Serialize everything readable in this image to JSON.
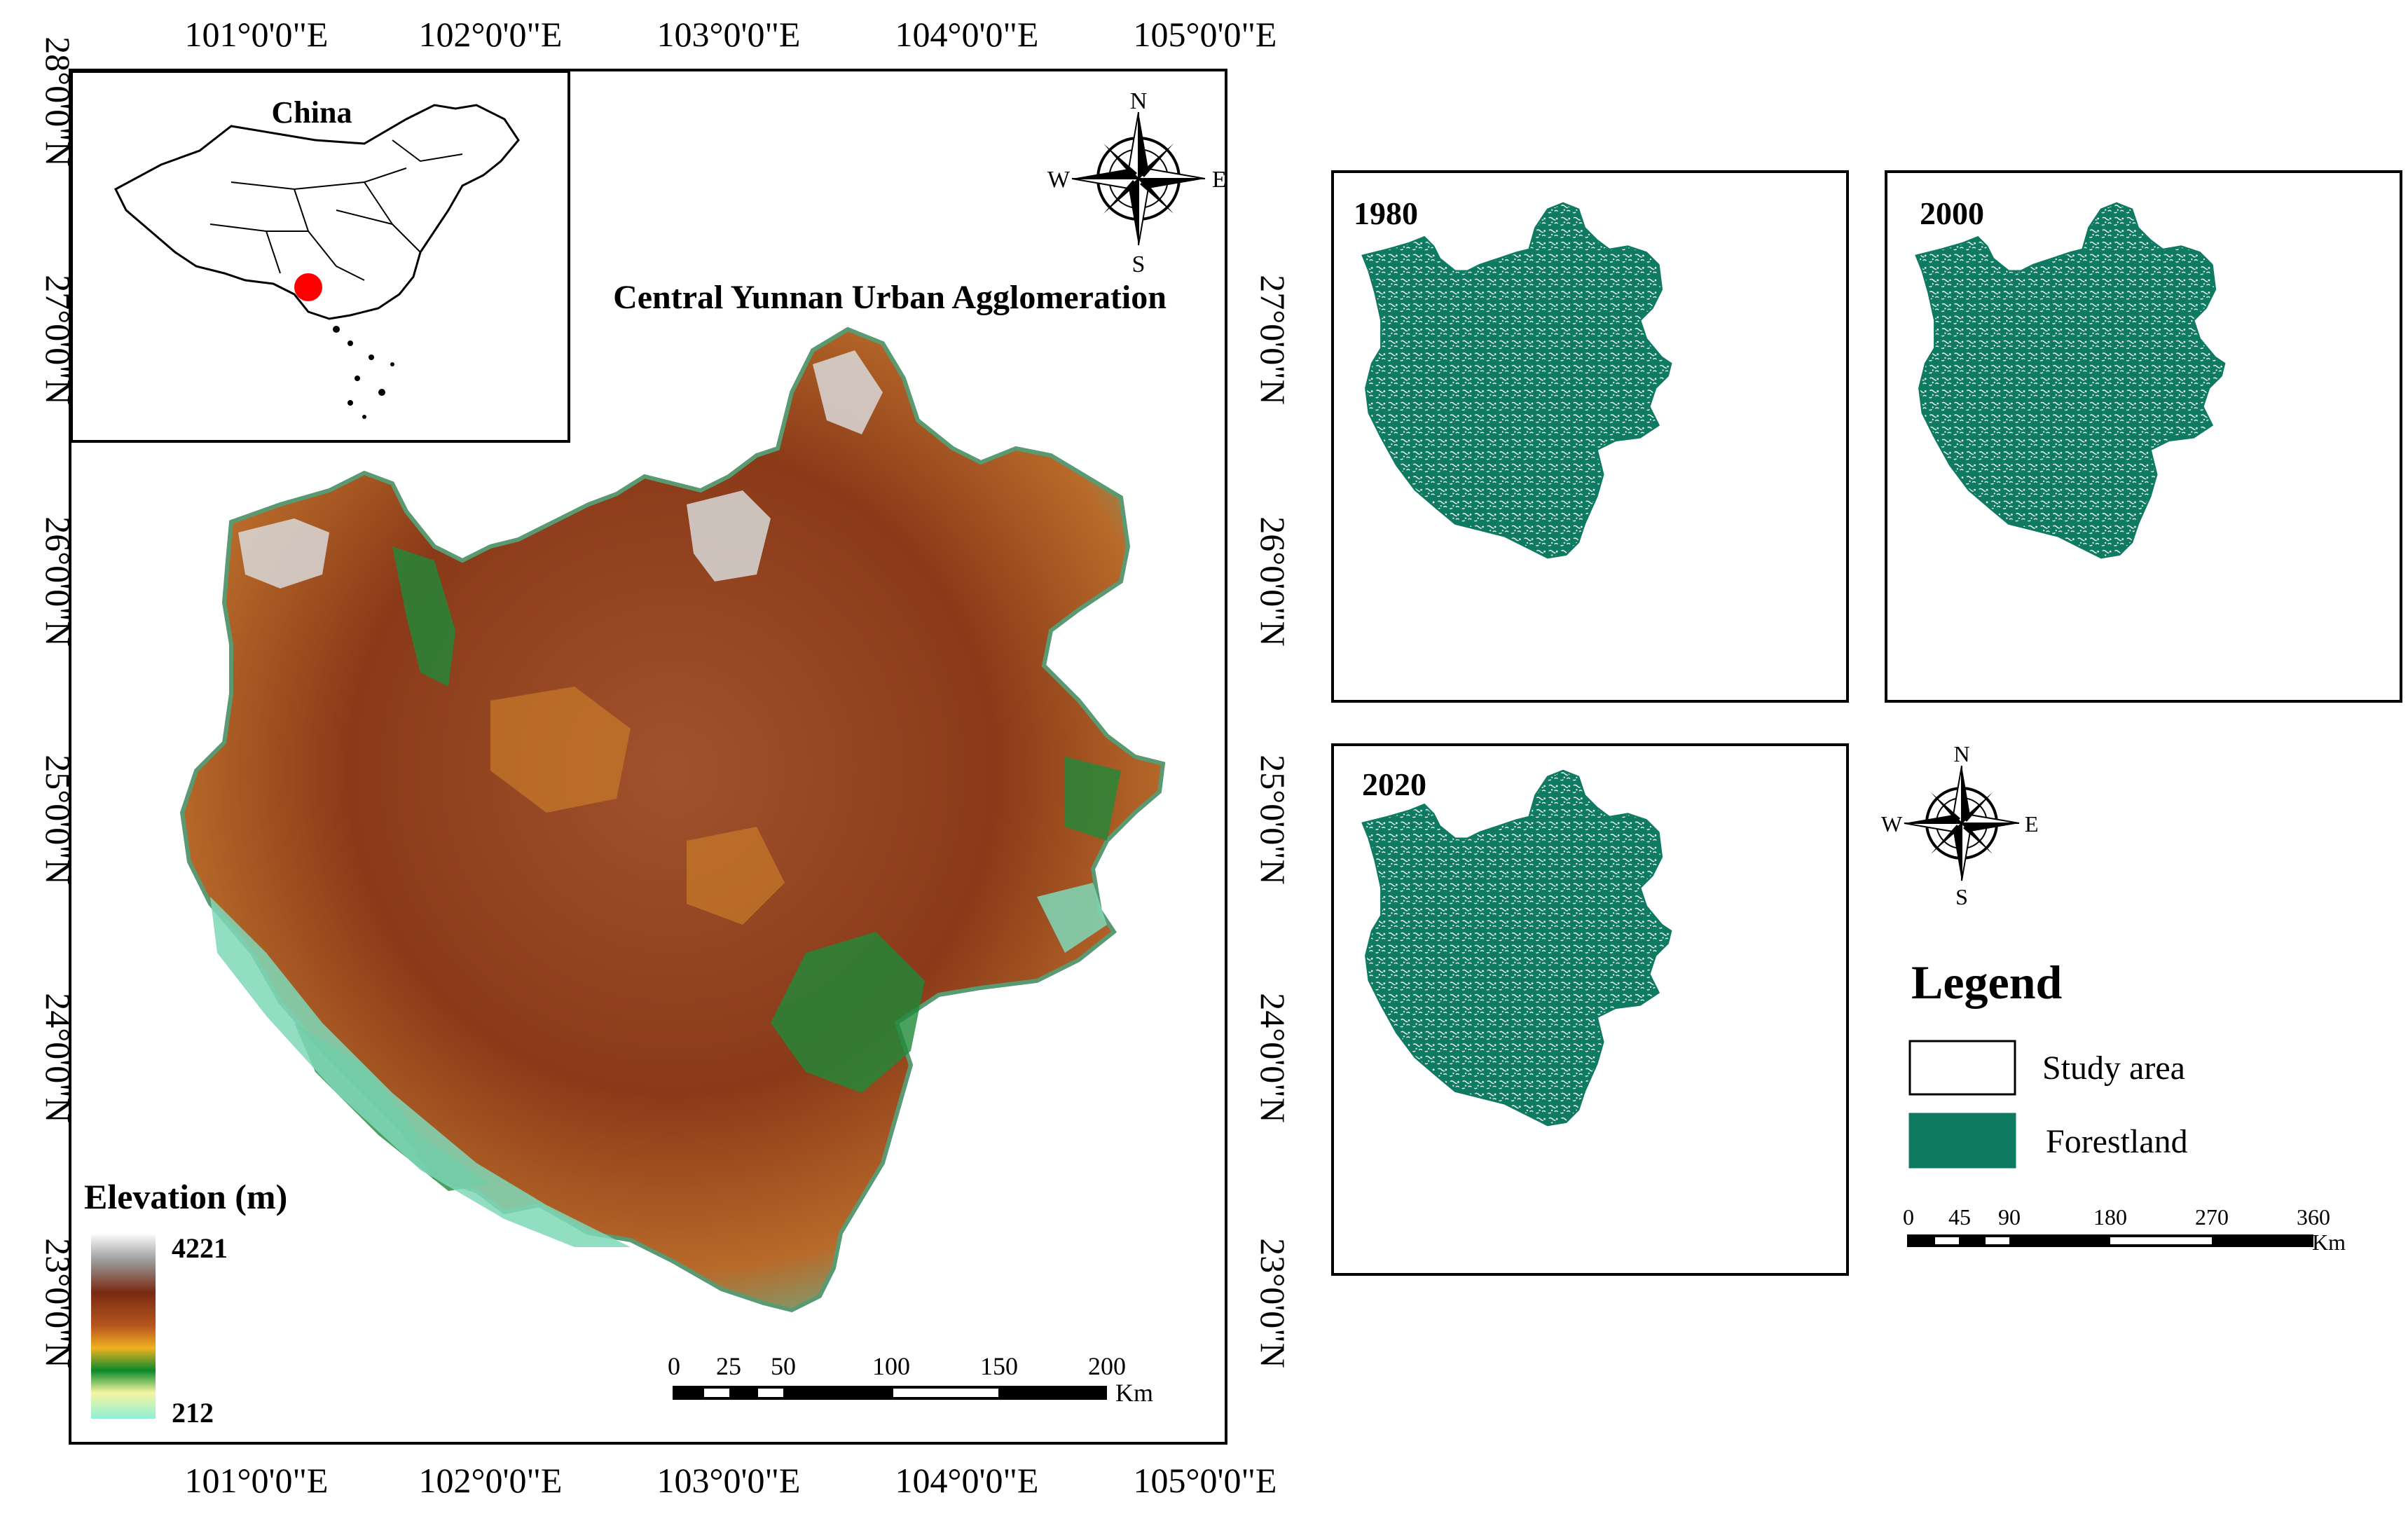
{
  "main_map": {
    "title": "Central Yunnan Urban Agglomeration",
    "lon_ticks": [
      "101°0'0\"E",
      "102°0'0\"E",
      "103°0'0\"E",
      "104°0'0\"E",
      "105°0'0\"E"
    ],
    "lat_ticks": [
      "28°0'0\"N",
      "27°0'0\"N",
      "26°0'0\"N",
      "25°0'0\"N",
      "24°0'0\"N",
      "23°0'0\"N"
    ],
    "inset_label": "China",
    "compass": {
      "n": "N",
      "s": "S",
      "e": "E",
      "w": "W"
    },
    "elevation_legend": {
      "title": "Elevation (m)",
      "max": "4221",
      "min": "212",
      "colors": [
        "#ffffff",
        "#8c3a1a",
        "#e08a1a",
        "#0b8a2a",
        "#9ef0d8"
      ]
    },
    "scalebar": {
      "labels": [
        "0",
        "25",
        "50",
        "100",
        "150",
        "200"
      ],
      "unit": "Km"
    }
  },
  "panels": [
    {
      "year": "1980"
    },
    {
      "year": "2000"
    },
    {
      "year": "2020"
    }
  ],
  "right_compass": {
    "n": "N",
    "s": "S",
    "e": "E",
    "w": "W"
  },
  "legend": {
    "title": "Legend",
    "items": [
      {
        "label": "Study area",
        "color": "#ffffff"
      },
      {
        "label": "Forestland",
        "color": "#0f7a62"
      }
    ]
  },
  "right_scalebar": {
    "labels": [
      "0",
      "45",
      "90",
      "180",
      "270",
      "360"
    ],
    "unit": "Km"
  },
  "colors": {
    "forest": "#0f7a62",
    "highlight": "#ff0000"
  }
}
